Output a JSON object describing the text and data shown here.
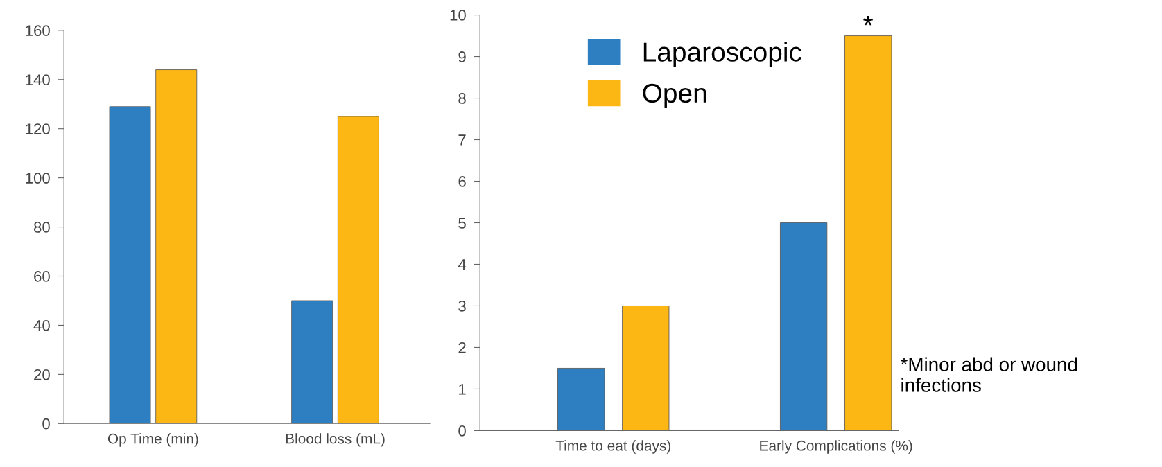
{
  "chart_data": [
    {
      "type": "bar",
      "categories": [
        "Op Time (min)",
        "Blood loss (mL)"
      ],
      "series": [
        {
          "color": "#2e7fc1",
          "values": [
            129,
            50
          ]
        },
        {
          "color": "#fdb714",
          "values": [
            144,
            125
          ]
        }
      ],
      "ylim": [
        0,
        160
      ],
      "yticks": [
        0,
        20,
        40,
        60,
        80,
        100,
        120,
        140,
        160
      ],
      "grid": false,
      "legend": false
    },
    {
      "type": "bar",
      "categories": [
        "Time to eat (days)",
        "Early Complications (%)"
      ],
      "series": [
        {
          "name": "Laparoscopic",
          "color": "#2e7fc1",
          "values": [
            1.5,
            5
          ]
        },
        {
          "name": "Open",
          "color": "#fdb714",
          "values": [
            3,
            9.5
          ]
        }
      ],
      "ylim": [
        0,
        10
      ],
      "yticks": [
        0,
        1,
        2,
        3,
        4,
        5,
        6,
        7,
        8,
        9,
        10
      ],
      "grid": false,
      "legend": "top left",
      "annotations": [
        "*",
        "*Minor abd or wound infections"
      ]
    }
  ]
}
